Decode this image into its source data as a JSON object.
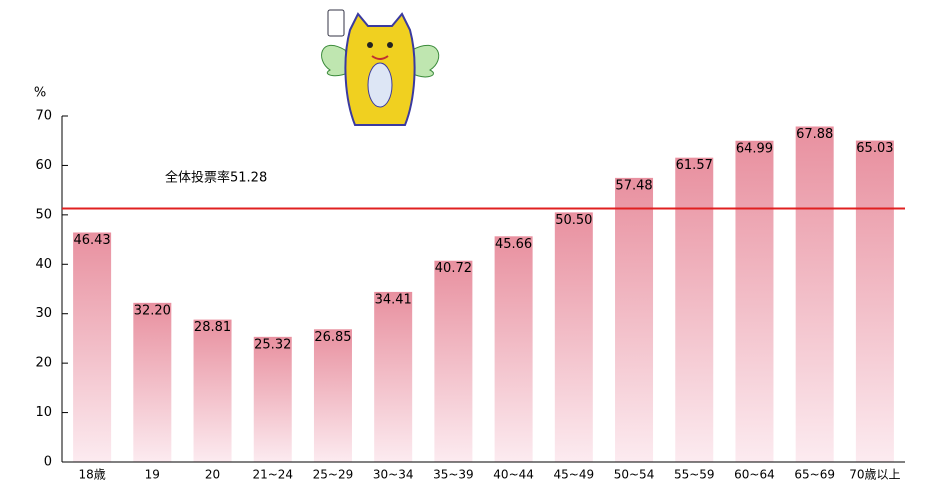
{
  "chart_data": {
    "type": "bar",
    "y_unit": "%",
    "categories": [
      "18歳",
      "19",
      "20",
      "21~24",
      "25~29",
      "30~34",
      "35~39",
      "40~44",
      "45~49",
      "50~54",
      "55~59",
      "60~64",
      "65~69",
      "70歳以上"
    ],
    "values": [
      46.43,
      32.2,
      28.81,
      25.32,
      26.85,
      34.41,
      40.72,
      45.66,
      50.5,
      57.48,
      61.57,
      64.99,
      67.88,
      65.03
    ],
    "value_labels": [
      "46.43",
      "32.20",
      "28.81",
      "25.32",
      "26.85",
      "34.41",
      "40.72",
      "45.66",
      "50.50",
      "57.48",
      "61.57",
      "64.99",
      "67.88",
      "65.03"
    ],
    "color": "#e8909f",
    "ylim": [
      0,
      70
    ],
    "yticks": [
      0,
      10,
      20,
      30,
      40,
      50,
      60,
      70
    ],
    "reference_line": {
      "value": 51.28,
      "label": "全体投票率51.28",
      "color": "#e02020"
    }
  }
}
